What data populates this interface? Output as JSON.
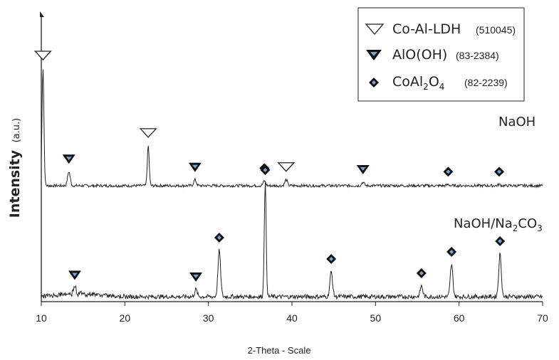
{
  "chart_data": {
    "type": "line",
    "title": "",
    "xlabel": "2-Theta - Scale",
    "ylabel": "Intensity",
    "ylabel_unit": "(a.u.)",
    "xlim": [
      10,
      70
    ],
    "x_ticks": [
      "10",
      "20",
      "30",
      "40",
      "50",
      "60",
      "70"
    ],
    "grid": false,
    "legend": {
      "position": "top-right",
      "entries": [
        {
          "name": "Co-Al-LDH",
          "ref": "(510045)",
          "marker": "open-triangle-down-icon"
        },
        {
          "name": "AlO(OH)",
          "ref": "(83-2384)",
          "marker": "filled-triangle-down-icon"
        },
        {
          "name": "CoAl2O4",
          "name_main": "CoAl",
          "name_sub1": "2",
          "name_mid": "O",
          "name_sub2": "4",
          "ref": "(82-2239)",
          "marker": "diamond-icon"
        }
      ]
    },
    "series": [
      {
        "name": "NaOH",
        "offset": 1.0,
        "base": 0.0,
        "peaks": [
          {
            "x": 10.2,
            "h": 1.0,
            "marker": "co-al-ldh"
          },
          {
            "x": 13.3,
            "h": 0.12,
            "marker": "aloh"
          },
          {
            "x": 22.8,
            "h": 0.34,
            "marker": "co-al-ldh"
          },
          {
            "x": 28.4,
            "h": 0.05,
            "marker": "aloh"
          },
          {
            "x": 36.7,
            "h": 0.04,
            "marker": "coal2o4"
          },
          {
            "x": 39.3,
            "h": 0.05,
            "marker": "co-al-ldh"
          },
          {
            "x": 48.5,
            "h": 0.03,
            "marker": "aloh"
          },
          {
            "x": 58.7,
            "h": 0.01,
            "marker": "coal2o4"
          },
          {
            "x": 64.8,
            "h": 0.01,
            "marker": "coal2o4"
          }
        ]
      },
      {
        "name": "NaOH/Na2CO3",
        "name_main": "NaOH/Na",
        "name_sub": "2",
        "name_end": "CO",
        "name_sub2": "3",
        "offset": 0.0,
        "base": 0.0,
        "peaks": [
          {
            "x": 14.0,
            "h": 0.05,
            "marker": "aloh"
          },
          {
            "x": 28.5,
            "h": 0.04,
            "marker": "aloh"
          },
          {
            "x": 31.3,
            "h": 0.26,
            "marker": "coal2o4"
          },
          {
            "x": 36.8,
            "h": 0.64,
            "marker": "coal2o4"
          },
          {
            "x": 44.7,
            "h": 0.14,
            "marker": "coal2o4"
          },
          {
            "x": 55.5,
            "h": 0.06,
            "marker": "coal2o4"
          },
          {
            "x": 59.1,
            "h": 0.18,
            "marker": "coal2o4"
          },
          {
            "x": 64.9,
            "h": 0.24,
            "marker": "coal2o4"
          }
        ]
      }
    ]
  }
}
